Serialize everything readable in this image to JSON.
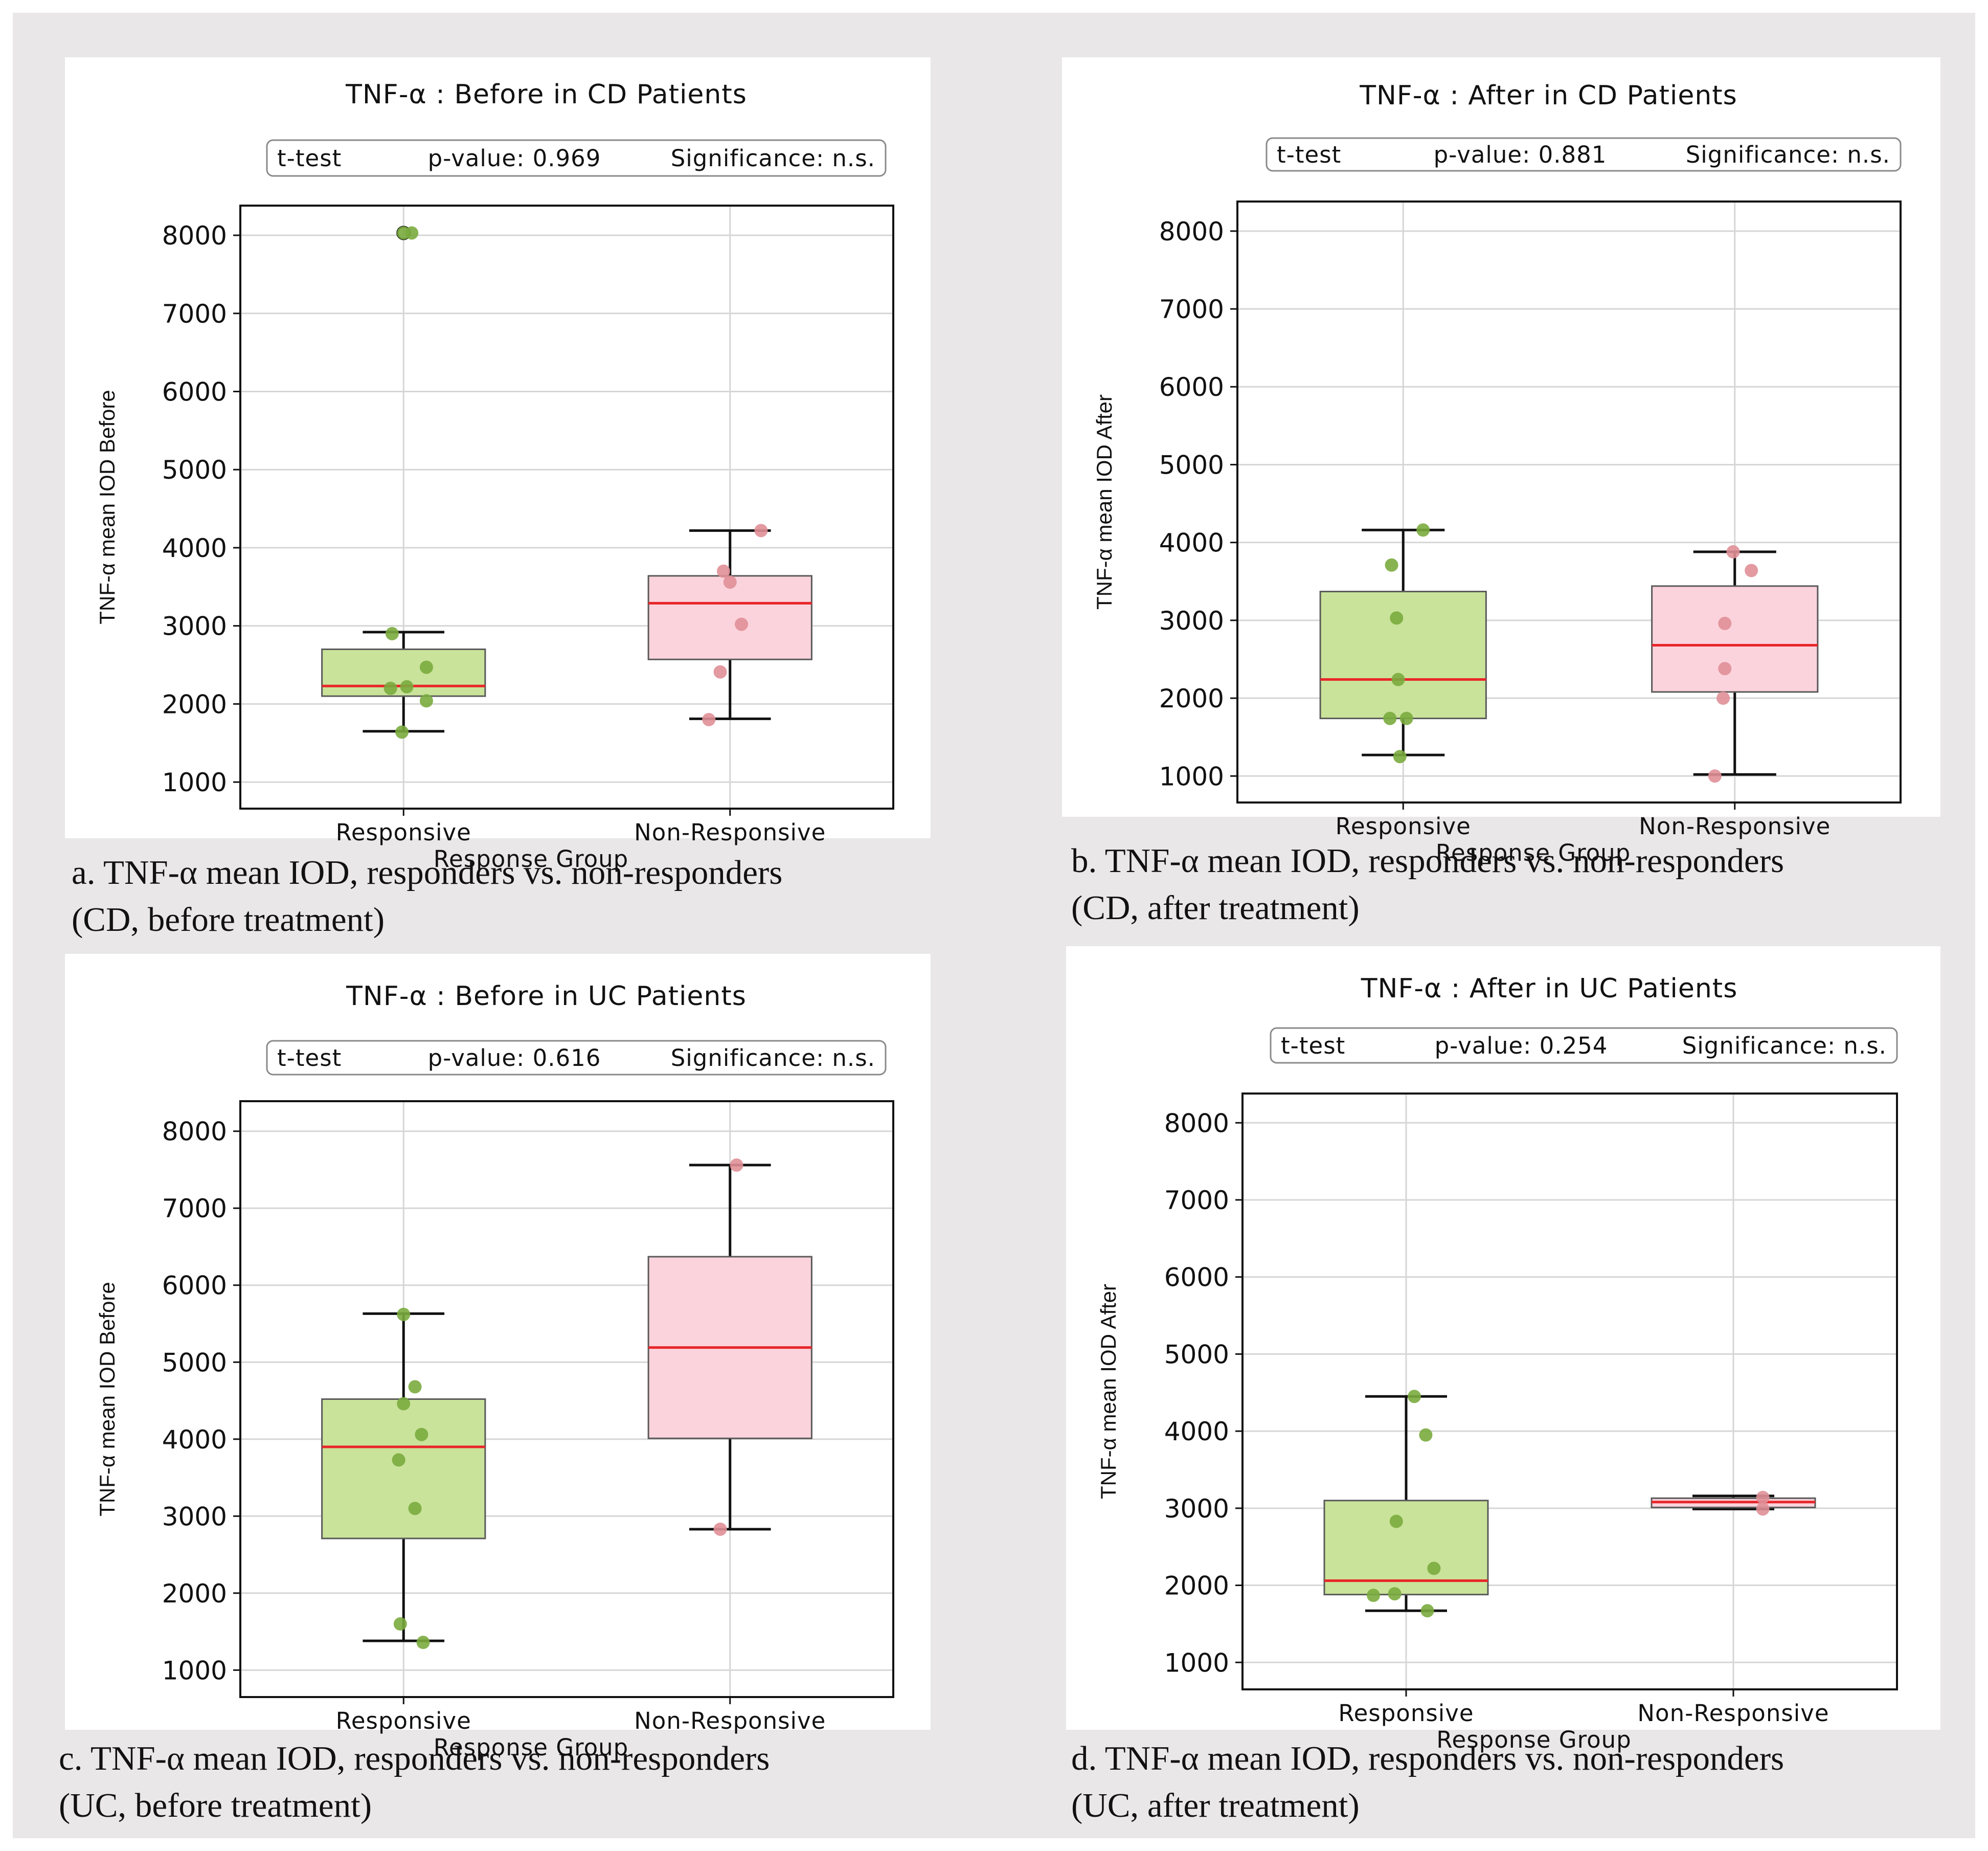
{
  "colors": {
    "responsive_fill": "#c9e39a",
    "responsive_point": "#7aab3e",
    "nonresponsive_fill": "#fbd3dc",
    "nonresponsive_point": "#e08f97",
    "median": "#e8262a",
    "grid": "#d6d6d6",
    "frame_bg": "#e9e7e8"
  },
  "chart_data": [
    {
      "type": "box",
      "title": "TNF-α : Before in CD Patients",
      "stats": {
        "test": "t-test",
        "p_value": "p-value: 0.969",
        "significance": "Significance: n.s."
      },
      "xlabel": "Response Group",
      "ylabel": "TNF-α mean IOD Before",
      "categories": [
        "Responsive",
        "Non-Responsive"
      ],
      "yticks": [
        1000,
        2000,
        3000,
        4000,
        5000,
        6000,
        7000,
        8000
      ],
      "ylim": [
        660,
        8380
      ],
      "caption": "a. TNF-α  mean IOD, responders vs. non-responders\n(CD, before treatment)",
      "groups": [
        {
          "name": "Responsive",
          "whisker_low": 1650,
          "q1": 2100,
          "median": 2230,
          "q3": 2700,
          "whisker_high": 2920,
          "outliers": [
            8030
          ],
          "points": [
            [
              0.0,
              8030
            ],
            [
              0.05,
              8030
            ],
            [
              -0.07,
              2900
            ],
            [
              0.14,
              2470
            ],
            [
              0.02,
              2220
            ],
            [
              -0.08,
              2200
            ],
            [
              0.14,
              2040
            ],
            [
              -0.01,
              1640
            ]
          ]
        },
        {
          "name": "Non-Responsive",
          "whisker_low": 1810,
          "q1": 2570,
          "median": 3290,
          "q3": 3640,
          "whisker_high": 4220,
          "outliers": [],
          "points": [
            [
              0.19,
              4220
            ],
            [
              -0.04,
              3700
            ],
            [
              0.0,
              3560
            ],
            [
              0.07,
              3020
            ],
            [
              -0.06,
              2410
            ],
            [
              -0.13,
              1800
            ]
          ]
        }
      ]
    },
    {
      "type": "box",
      "title": "TNF-α : After in CD Patients",
      "stats": {
        "test": "t-test",
        "p_value": "p-value: 0.881",
        "significance": "Significance: n.s."
      },
      "xlabel": "Response Group",
      "ylabel": "TNF-α mean IOD After",
      "categories": [
        "Responsive",
        "Non-Responsive"
      ],
      "yticks": [
        1000,
        2000,
        3000,
        4000,
        5000,
        6000,
        7000,
        8000
      ],
      "ylim": [
        660,
        8380
      ],
      "caption": "b. TNF-α  mean IOD, responders vs. non-responders\n(CD, after treatment)",
      "groups": [
        {
          "name": "Responsive",
          "whisker_low": 1270,
          "q1": 1740,
          "median": 2240,
          "q3": 3370,
          "whisker_high": 4160,
          "outliers": [],
          "points": [
            [
              0.12,
              4160
            ],
            [
              -0.07,
              3710
            ],
            [
              -0.04,
              3030
            ],
            [
              -0.03,
              2240
            ],
            [
              -0.08,
              1740
            ],
            [
              0.02,
              1740
            ],
            [
              -0.02,
              1250
            ]
          ]
        },
        {
          "name": "Non-Responsive",
          "whisker_low": 1020,
          "q1": 2080,
          "median": 2680,
          "q3": 3440,
          "whisker_high": 3880,
          "outliers": [],
          "points": [
            [
              -0.01,
              3880
            ],
            [
              0.1,
              3640
            ],
            [
              -0.06,
              2960
            ],
            [
              -0.06,
              2380
            ],
            [
              -0.07,
              2000
            ],
            [
              -0.12,
              1000
            ]
          ]
        }
      ]
    },
    {
      "type": "box",
      "title": "TNF-α : Before in UC Patients",
      "stats": {
        "test": "t-test",
        "p_value": "p-value: 0.616",
        "significance": "Significance: n.s."
      },
      "xlabel": "Response Group",
      "ylabel": "TNF-α mean IOD Before",
      "categories": [
        "Responsive",
        "Non-Responsive"
      ],
      "yticks": [
        1000,
        2000,
        3000,
        4000,
        5000,
        6000,
        7000,
        8000
      ],
      "ylim": [
        650,
        8390
      ],
      "caption": "c. TNF-α  mean IOD, responders vs. non-responders\n(UC, before treatment)",
      "groups": [
        {
          "name": "Responsive",
          "whisker_low": 1380,
          "q1": 2710,
          "median": 3900,
          "q3": 4520,
          "whisker_high": 5630,
          "outliers": [],
          "points": [
            [
              0.0,
              5620
            ],
            [
              0.07,
              4680
            ],
            [
              0.0,
              4460
            ],
            [
              0.11,
              4060
            ],
            [
              -0.03,
              3730
            ],
            [
              0.07,
              3100
            ],
            [
              -0.02,
              1600
            ],
            [
              0.12,
              1360
            ]
          ]
        },
        {
          "name": "Non-Responsive",
          "whisker_low": 2830,
          "q1": 4010,
          "median": 5190,
          "q3": 6370,
          "whisker_high": 7560,
          "outliers": [],
          "points": [
            [
              0.04,
              7560
            ],
            [
              -0.06,
              2830
            ]
          ]
        }
      ]
    },
    {
      "type": "box",
      "title": "TNF-α : After in UC Patients",
      "stats": {
        "test": "t-test",
        "p_value": "p-value: 0.254",
        "significance": "Significance: n.s."
      },
      "xlabel": "Response Group",
      "ylabel": "TNF-α mean IOD After",
      "categories": [
        "Responsive",
        "Non-Responsive"
      ],
      "yticks": [
        1000,
        2000,
        3000,
        4000,
        5000,
        6000,
        7000,
        8000
      ],
      "ylim": [
        650,
        8380
      ],
      "caption": "d. TNF-α  mean IOD, responders vs. non-responders\n(UC, after treatment)",
      "groups": [
        {
          "name": "Responsive",
          "whisker_low": 1670,
          "q1": 1880,
          "median": 2060,
          "q3": 3100,
          "whisker_high": 4450,
          "outliers": [],
          "points": [
            [
              0.05,
              4450
            ],
            [
              0.12,
              3950
            ],
            [
              -0.06,
              2830
            ],
            [
              0.17,
              2220
            ],
            [
              -0.2,
              1870
            ],
            [
              -0.07,
              1890
            ],
            [
              0.13,
              1670
            ]
          ]
        },
        {
          "name": "Non-Responsive",
          "whisker_low": 2990,
          "q1": 3010,
          "median": 3080,
          "q3": 3130,
          "whisker_high": 3160,
          "outliers": [],
          "points": [
            [
              0.18,
              3140
            ],
            [
              0.18,
              2990
            ]
          ]
        }
      ]
    }
  ]
}
